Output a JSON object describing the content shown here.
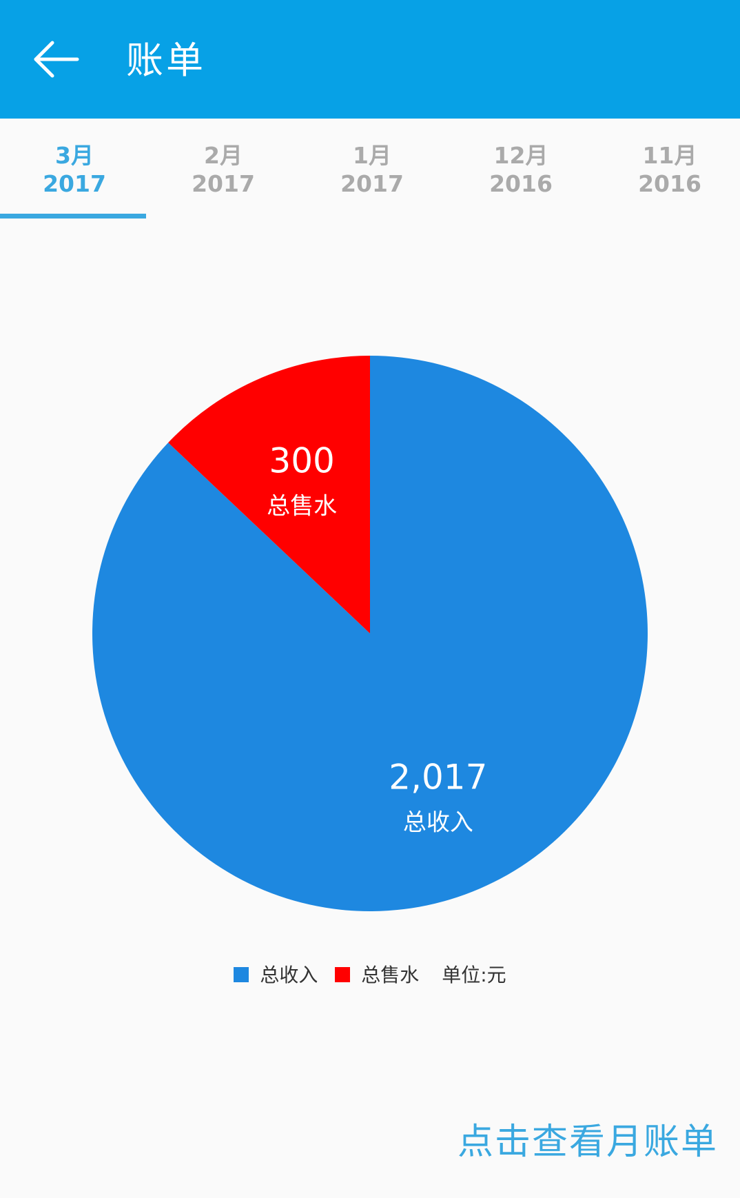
{
  "appbar": {
    "title": "账单",
    "background": "#07a1e6",
    "back_icon": "arrow-left-icon"
  },
  "tabs": [
    {
      "month": "3月",
      "year": "2017",
      "active": true
    },
    {
      "month": "2月",
      "year": "2017",
      "active": false
    },
    {
      "month": "1月",
      "year": "2017",
      "active": false
    },
    {
      "month": "12月",
      "year": "2016",
      "active": false
    },
    {
      "month": "11月",
      "year": "2016",
      "active": false
    }
  ],
  "accent_color": "#3aa8e0",
  "chart_data": {
    "type": "pie",
    "slices": [
      {
        "label": "总收入",
        "value": 2017,
        "display": "2,017",
        "color": "#1e88e0"
      },
      {
        "label": "总售水",
        "value": 300,
        "display": "300",
        "color": "#ff0000"
      }
    ],
    "legend_position": "bottom",
    "unit_label": "单位:元"
  },
  "legend": {
    "items": [
      {
        "label": "总收入",
        "color": "#1e88e0"
      },
      {
        "label": "总售水",
        "color": "#ff0000"
      }
    ],
    "unit": "单位:元"
  },
  "footer": {
    "link_label": "点击查看月账单"
  }
}
